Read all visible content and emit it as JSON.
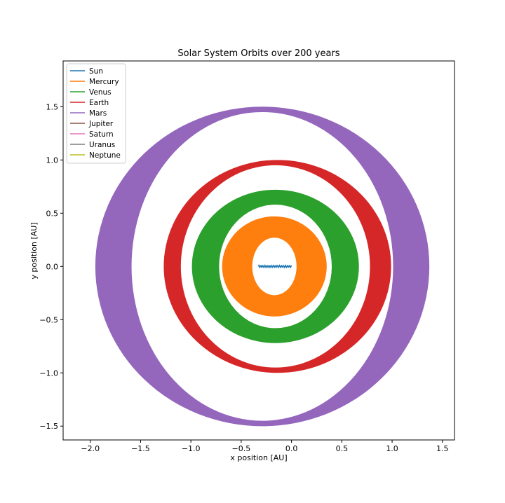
{
  "chart_data": {
    "type": "line",
    "title": "Solar System Orbits over 200 years",
    "xlabel": "x position [AU]",
    "ylabel": "y position [AU]",
    "xlim": [
      -2.27,
      1.62
    ],
    "ylim": [
      -1.63,
      1.93
    ],
    "xticks": [
      -2.0,
      -1.5,
      -1.0,
      -0.5,
      0.0,
      0.5,
      1.0,
      1.5
    ],
    "xtick_labels": [
      "−2.0",
      "−1.5",
      "−1.0",
      "−0.5",
      "0.0",
      "0.5",
      "1.0",
      "1.5"
    ],
    "yticks": [
      -1.5,
      -1.0,
      -0.5,
      0.0,
      0.5,
      1.0,
      1.5
    ],
    "ytick_labels": [
      "−1.5",
      "−1.0",
      "−0.5",
      "0.0",
      "0.5",
      "1.0",
      "1.5"
    ],
    "grid": false,
    "legend_position": "upper-left",
    "series": [
      {
        "name": "Sun",
        "color": "#1f77b4",
        "kind": "wobble",
        "x_range": [
          -0.33,
          0.0
        ],
        "y_center": 0.0,
        "amplitude": 0.01
      },
      {
        "name": "Mercury",
        "color": "#ff7f0e",
        "kind": "band",
        "outer": {
          "cx": -0.17,
          "cy": 0.0,
          "rx": 0.52,
          "ry": 0.47
        },
        "inner": {
          "cx": -0.17,
          "cy": 0.0,
          "rx": 0.22,
          "ry": 0.27
        }
      },
      {
        "name": "Venus",
        "color": "#2ca02c",
        "kind": "band",
        "outer": {
          "cx": -0.16,
          "cy": 0.0,
          "rx": 0.83,
          "ry": 0.72
        },
        "inner": {
          "cx": -0.16,
          "cy": 0.0,
          "rx": 0.56,
          "ry": 0.58
        }
      },
      {
        "name": "Earth",
        "color": "#d62728",
        "kind": "band",
        "outer": {
          "cx": -0.14,
          "cy": 0.0,
          "rx": 1.13,
          "ry": 1.0
        },
        "inner": {
          "cx": -0.16,
          "cy": 0.0,
          "rx": 0.94,
          "ry": 0.95
        }
      },
      {
        "name": "Mars",
        "color": "#9467bd",
        "kind": "band",
        "outer": {
          "cx": -0.29,
          "cy": 0.0,
          "rx": 1.66,
          "ry": 1.5
        },
        "inner": {
          "cx": -0.29,
          "cy": 0.0,
          "rx": 1.3,
          "ry": 1.45
        }
      },
      {
        "name": "Jupiter",
        "color": "#8c564b",
        "kind": "none"
      },
      {
        "name": "Saturn",
        "color": "#e377c2",
        "kind": "none"
      },
      {
        "name": "Uranus",
        "color": "#7f7f7f",
        "kind": "none"
      },
      {
        "name": "Neptune",
        "color": "#bcbd22",
        "kind": "none"
      }
    ]
  }
}
